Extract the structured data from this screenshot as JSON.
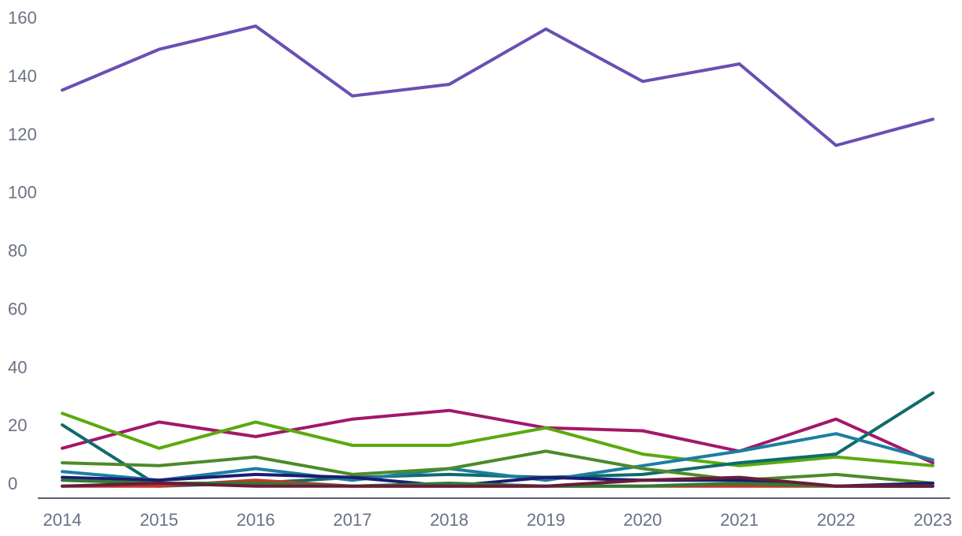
{
  "chart_data": {
    "type": "line",
    "x": [
      "2014",
      "2015",
      "2016",
      "2017",
      "2018",
      "2019",
      "2020",
      "2021",
      "2022",
      "2023"
    ],
    "ylim": [
      -5,
      165
    ],
    "yticks": [
      0,
      20,
      40,
      60,
      80,
      100,
      120,
      140,
      160
    ],
    "grid": false,
    "legend": "none",
    "series": [
      {
        "color": "#6a4fb3",
        "values": [
          135,
          149,
          157,
          133,
          137,
          156,
          138,
          144,
          116,
          125
        ]
      },
      {
        "color": "#a3176b",
        "values": [
          12,
          21,
          16,
          22,
          25,
          19,
          18,
          11,
          22,
          7
        ]
      },
      {
        "color": "#5aaa0f",
        "values": [
          24,
          12,
          21,
          13,
          13,
          19,
          10,
          6,
          9,
          6
        ]
      },
      {
        "color": "#0f6b6b",
        "values": [
          20,
          -1,
          0,
          2,
          3,
          2,
          3,
          7,
          10,
          31
        ]
      },
      {
        "color": "#1a7fa0",
        "values": [
          4,
          1,
          5,
          1,
          5,
          1,
          6,
          11,
          17,
          8
        ]
      },
      {
        "color": "#4d8a2a",
        "values": [
          7,
          6,
          9,
          3,
          5,
          11,
          5,
          1,
          3,
          0
        ]
      },
      {
        "color": "#1d1b73",
        "values": [
          2,
          1,
          3,
          2,
          -1,
          2,
          1,
          1,
          -1,
          0
        ]
      },
      {
        "color": "#c0392b",
        "values": [
          -1,
          -1,
          1,
          -1,
          -1,
          -1,
          -1,
          -1,
          -1,
          -1
        ]
      },
      {
        "color": "#2e7d32",
        "values": [
          1,
          0,
          0,
          -1,
          0,
          -1,
          -1,
          0,
          -1,
          -1
        ]
      },
      {
        "color": "#6a1b3a",
        "values": [
          -1,
          0,
          -1,
          -1,
          -1,
          -1,
          1,
          2,
          -1,
          -1
        ]
      }
    ]
  }
}
